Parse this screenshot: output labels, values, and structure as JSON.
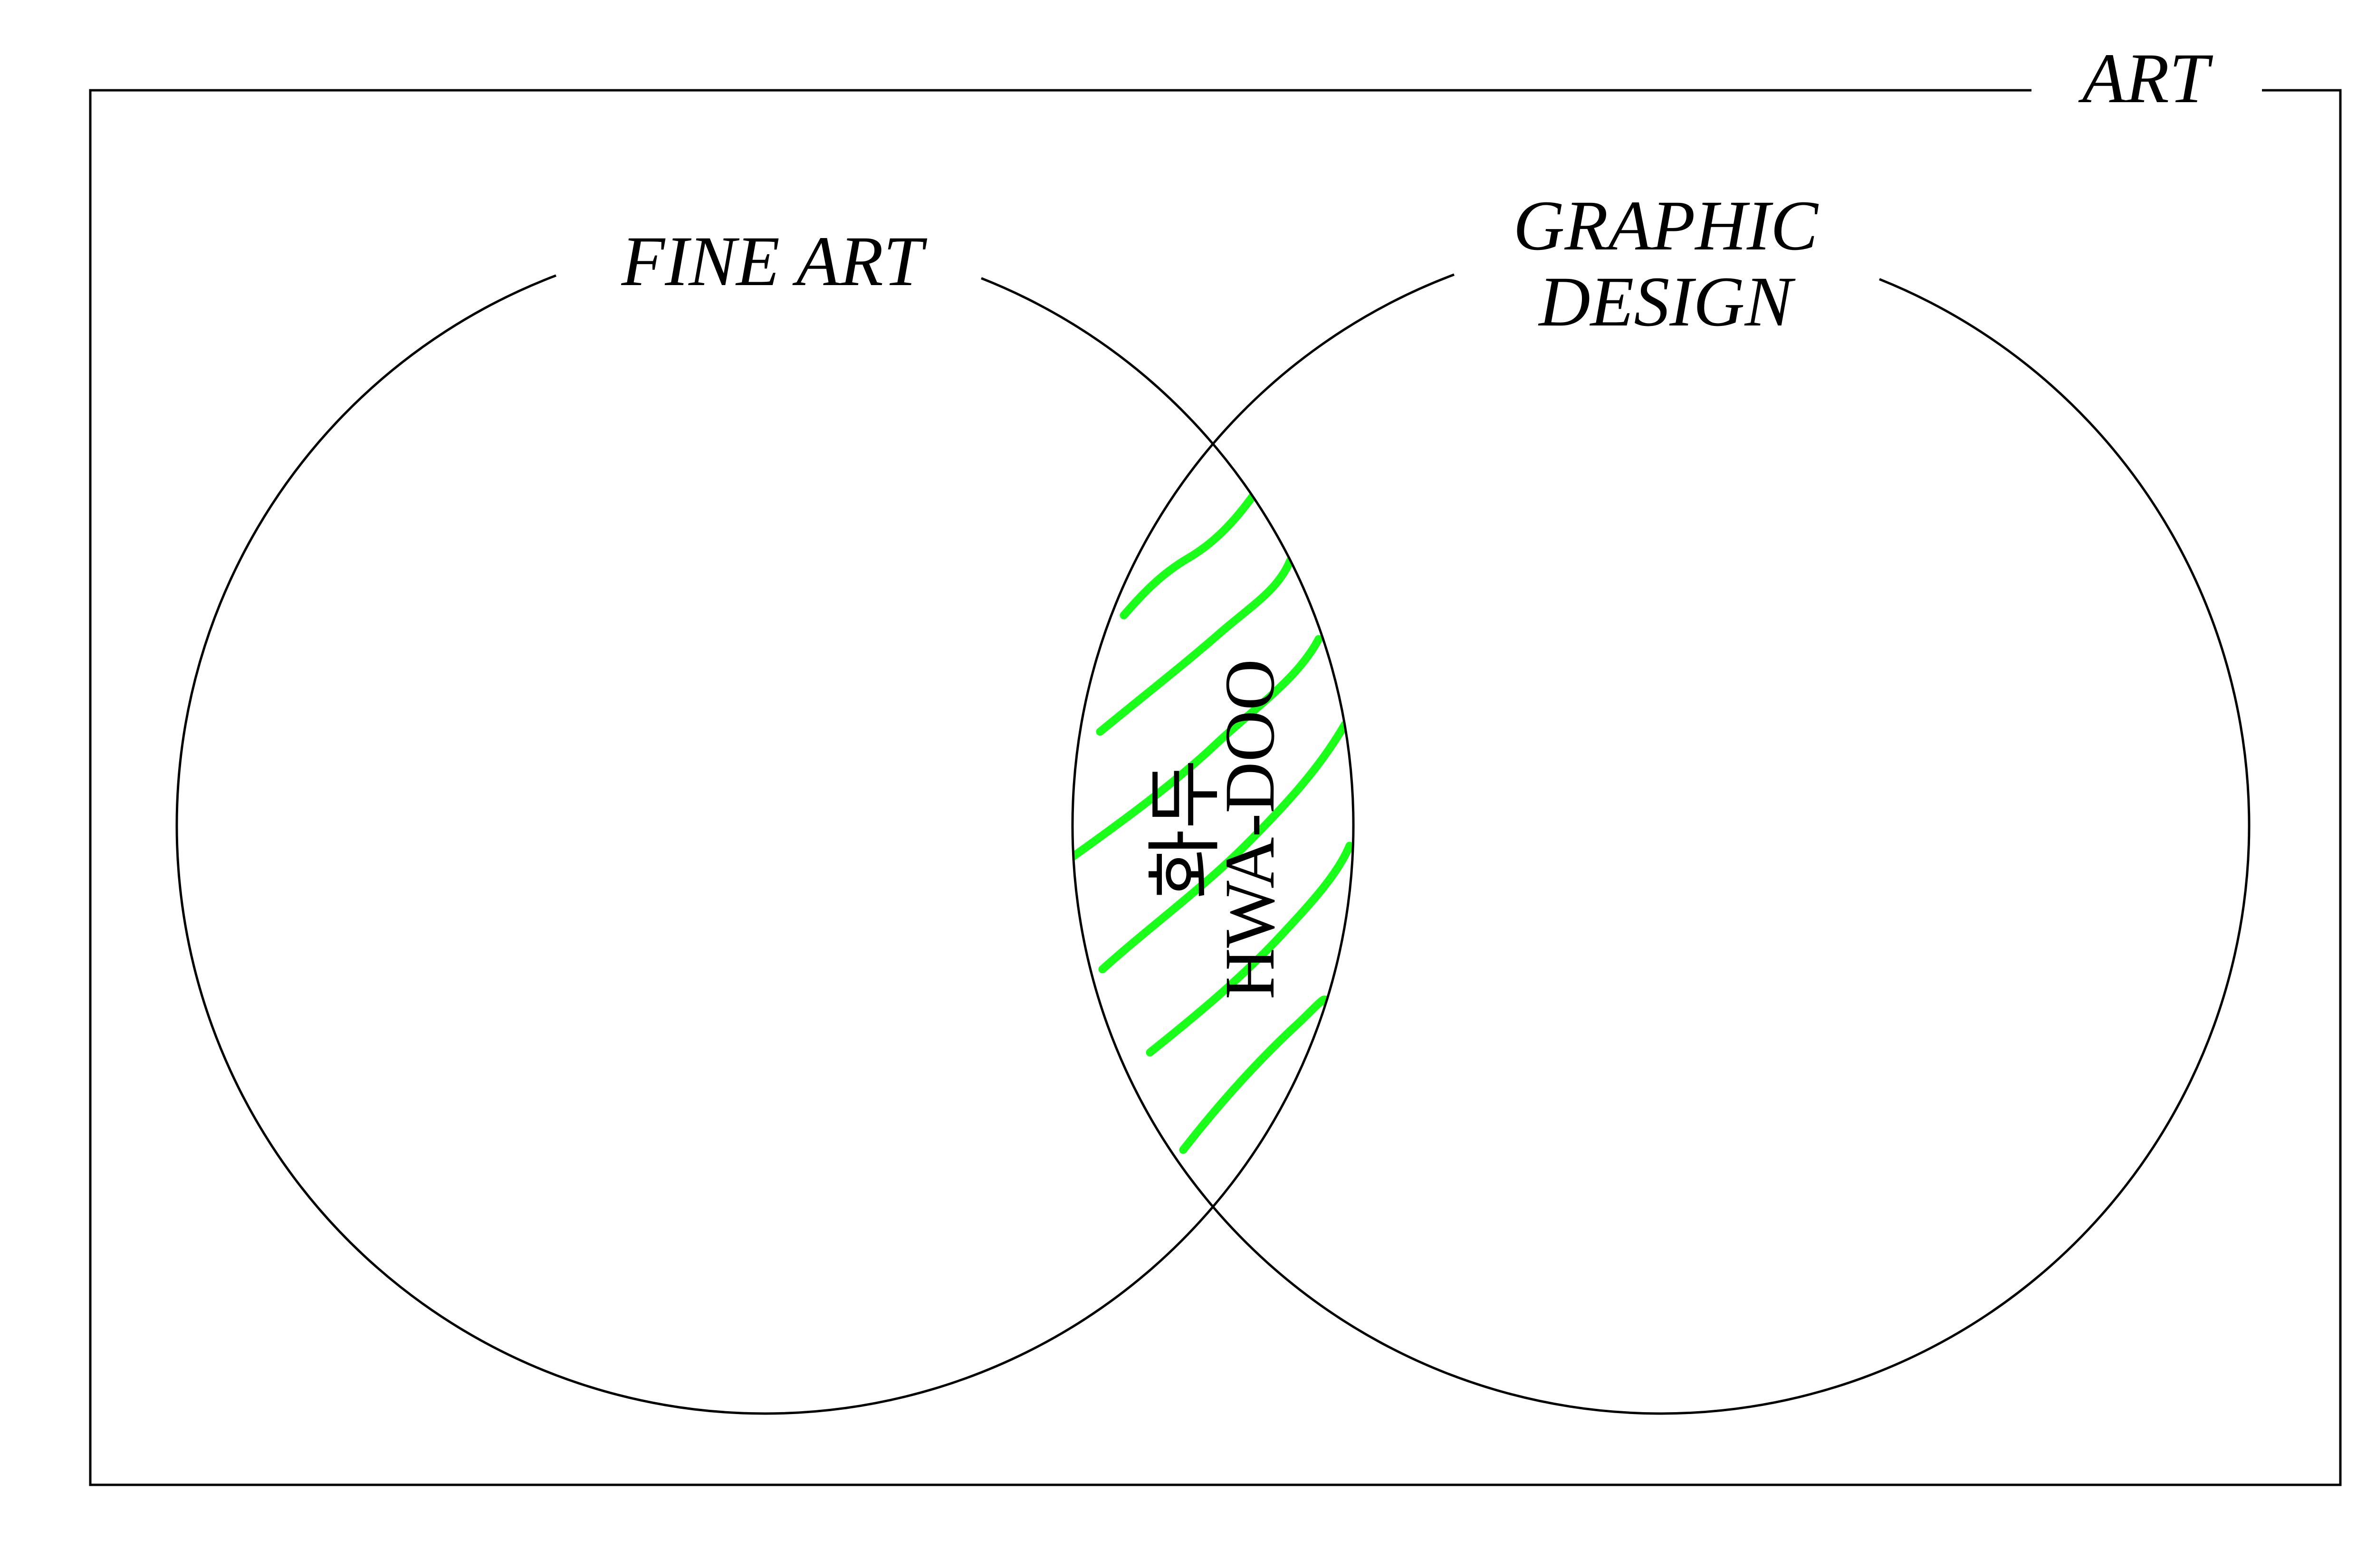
{
  "diagram": {
    "universe_label": "ART",
    "left_set_label": "FINE ART",
    "right_set_label_line1": "GRAPHIC",
    "right_set_label_line2": "DESIGN",
    "intersection_label_korean": "화두",
    "intersection_label_romanized": "HWA-DOO"
  },
  "colors": {
    "line": "#000000",
    "background": "#ffffff",
    "highlight": "#19ff19"
  }
}
